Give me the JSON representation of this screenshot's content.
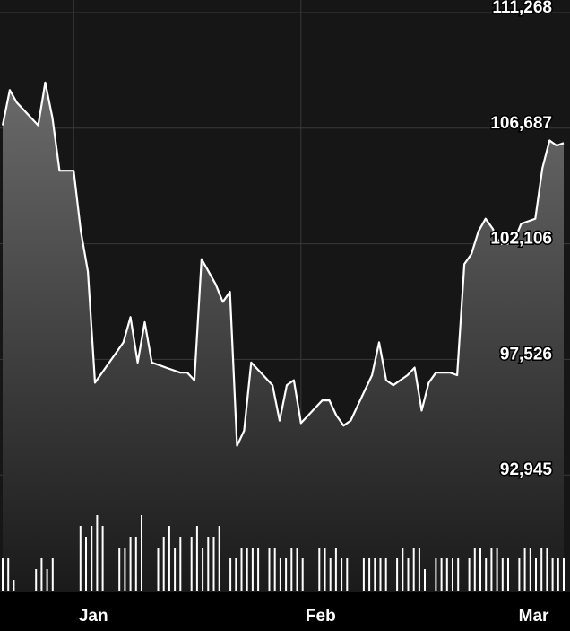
{
  "chart_data": {
    "type": "line",
    "title": "",
    "xlabel": "",
    "ylabel": "",
    "grid": true,
    "colors": {
      "background": "#000000",
      "plot_background": "#161616",
      "line": "#ffffff",
      "fill_top": "#6a6a6a",
      "fill_bottom": "#1a1a1a",
      "grid": "#3a3a3a",
      "text": "#ffffff"
    },
    "x_ticks": [
      {
        "label": "Jan",
        "index": 10
      },
      {
        "label": "Feb",
        "index": 42
      },
      {
        "label": "Mar",
        "index": 72
      }
    ],
    "y_ticks": [
      111268,
      106687,
      102106,
      97526,
      92945
    ],
    "ylim": [
      88364,
      111268
    ],
    "series": [
      {
        "values": [
          106800,
          108200,
          107700,
          107400,
          107100,
          106800,
          108500,
          107100,
          105000,
          105000,
          105000,
          102600,
          101000,
          96600,
          97000,
          97400,
          97800,
          98200,
          99200,
          97400,
          99000,
          97400,
          97300,
          97200,
          97100,
          97000,
          97000,
          96700,
          101500,
          101000,
          100500,
          99800,
          100200,
          94100,
          94700,
          97400,
          97100,
          96800,
          96500,
          95100,
          96500,
          96700,
          95000,
          95300,
          95600,
          95900,
          95900,
          95300,
          94900,
          95100,
          95700,
          96300,
          96900,
          98200,
          96700,
          96500,
          96700,
          96900,
          97200,
          95500,
          96600,
          97000,
          97000,
          97000,
          96900,
          101300,
          101700,
          102600,
          103100,
          102700,
          102100,
          102100,
          102200,
          102900,
          103000,
          103100,
          105100,
          106200,
          106000,
          106100
        ]
      }
    ],
    "volume": [
      3,
      3,
      1,
      0,
      0,
      0,
      2,
      3,
      2,
      3,
      0,
      0,
      0,
      0,
      6,
      5,
      6,
      7,
      6,
      0,
      0,
      4,
      4,
      5,
      5,
      7,
      0,
      0,
      4,
      5,
      6,
      4,
      5,
      0,
      5,
      6,
      4,
      5,
      5,
      6,
      0,
      3,
      3,
      4,
      4,
      4,
      4,
      0,
      4,
      4,
      3,
      3,
      4,
      4,
      3,
      0,
      0,
      4,
      4,
      3,
      4,
      3,
      3,
      0,
      0,
      3,
      3,
      3,
      3,
      3,
      0,
      3,
      4,
      3,
      4,
      4,
      2,
      0,
      3,
      3,
      3,
      3,
      3,
      0,
      3,
      4,
      4,
      3,
      4,
      4,
      3,
      3,
      0,
      3,
      4,
      4,
      3,
      4,
      4,
      3,
      3,
      3
    ]
  }
}
